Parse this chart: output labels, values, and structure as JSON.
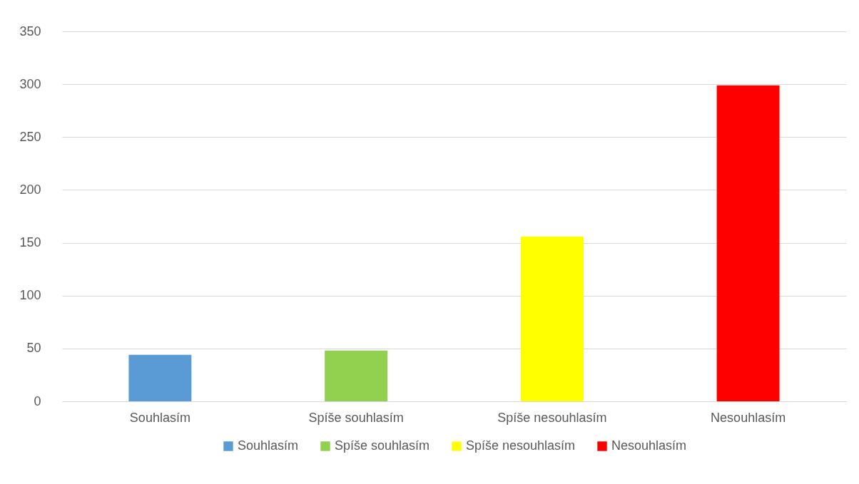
{
  "chart_data": {
    "type": "bar",
    "categories": [
      "Souhlasím",
      "Spíše souhlasím",
      "Spíše nesouhlasím",
      "Nesouhlasím"
    ],
    "series": [
      {
        "name": "Souhlasím",
        "color": "#5b9bd5",
        "values": [
          44,
          null,
          null,
          null
        ]
      },
      {
        "name": "Spíše souhlasím",
        "color": "#92d050",
        "values": [
          null,
          48,
          null,
          null
        ]
      },
      {
        "name": "Spíše nesouhlasím",
        "color": "#ffff00",
        "values": [
          null,
          null,
          156,
          null
        ]
      },
      {
        "name": "Nesouhlasím",
        "color": "#ff0000",
        "values": [
          null,
          null,
          null,
          299
        ]
      }
    ],
    "ylim": [
      0,
      350
    ],
    "yticks": [
      0,
      50,
      100,
      150,
      200,
      250,
      300,
      350
    ],
    "grid": "y",
    "legend": "bottom"
  }
}
